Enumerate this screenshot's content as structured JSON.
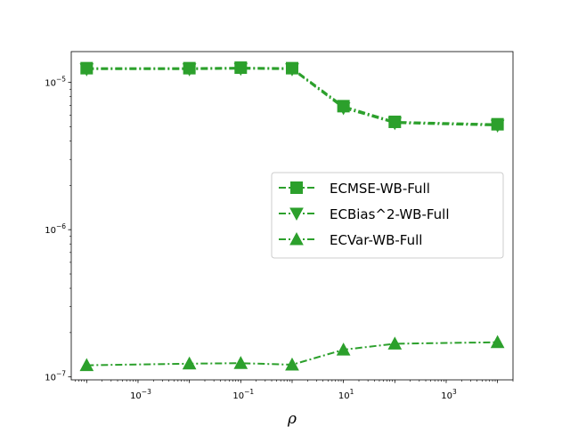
{
  "chart_data": {
    "type": "line",
    "x_scale": "log",
    "y_scale": "log",
    "xlabel": "ρ",
    "ylabel": "",
    "title": "",
    "xlim": [
      5.01e-05,
      20000
    ],
    "ylim": [
      9.55e-08,
      1.62e-05
    ],
    "x_ticks": [
      {
        "value": 0.001,
        "base": "10",
        "exp": "−3"
      },
      {
        "value": 0.1,
        "base": "10",
        "exp": "−1"
      },
      {
        "value": 10,
        "base": "10",
        "exp": "1"
      },
      {
        "value": 1000,
        "base": "10",
        "exp": "3"
      }
    ],
    "y_ticks": [
      {
        "value": 1e-07,
        "base": "10",
        "exp": "−7"
      },
      {
        "value": 1e-06,
        "base": "10",
        "exp": "−6"
      },
      {
        "value": 1e-05,
        "base": "10",
        "exp": "−5"
      }
    ],
    "grid": false,
    "legend_position": "center-right",
    "color": "#2ca02c",
    "x": [
      0.0001,
      0.01,
      0.1,
      1,
      10,
      100,
      10000
    ],
    "series": [
      {
        "name": "ECMSE-WB-Full",
        "marker": "square",
        "values": [
          1.25e-05,
          1.25e-05,
          1.26e-05,
          1.25e-05,
          6.9e-06,
          5.4e-06,
          5.2e-06
        ]
      },
      {
        "name": "ECBias^2-WB-Full",
        "marker": "triangle-down",
        "values": [
          1.23e-05,
          1.23e-05,
          1.24e-05,
          1.23e-05,
          6.7e-06,
          5.3e-06,
          5.1e-06
        ]
      },
      {
        "name": "ECVar-WB-Full",
        "marker": "triangle-up",
        "values": [
          1.2e-07,
          1.23e-07,
          1.24e-07,
          1.21e-07,
          1.53e-07,
          1.68e-07,
          1.72e-07
        ]
      }
    ]
  }
}
